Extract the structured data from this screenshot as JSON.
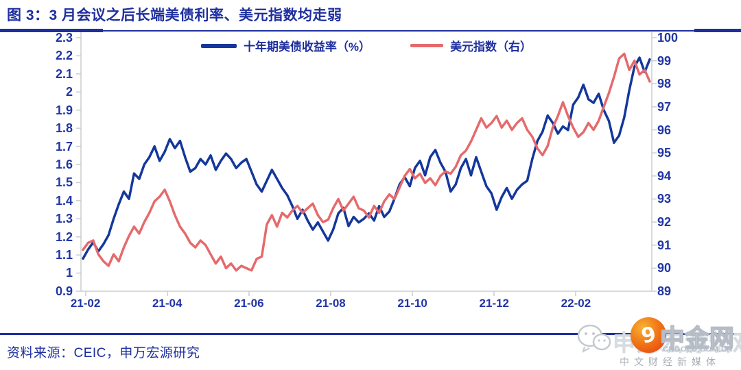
{
  "header": {
    "title": "图 3：3 月会议之后长端美债利率、美元指数均走弱"
  },
  "footer": {
    "source": "资料来源：CEIC，申万宏源研究"
  },
  "watermark": {
    "wechat_icon": "wechat-icon",
    "account_name": "申万宏源宏观",
    "site_name": "中金网",
    "site_url": "CNGOLD.COM.CN",
    "tagline": "中文财经新媒体"
  },
  "colors": {
    "accent_blue": "#1E2F9F",
    "treasury_line": "#14379B",
    "dxy_line": "#E56A6C",
    "axis_gray": "#C9CDD1",
    "watermark_orange": "#E8380D"
  },
  "chart_data": {
    "type": "line",
    "legend_position": "top-center",
    "grid": false,
    "axis_color": "#C9CDD1",
    "x_tick_labels": [
      "21-02",
      "21-04",
      "21-06",
      "21-08",
      "21-10",
      "21-12",
      "22-02"
    ],
    "x_range_note": "2021-02 through late 2022-03, semi-weekly points",
    "left_axis": {
      "min": 0.9,
      "max": 2.3,
      "step": 0.1,
      "tick_labels": [
        "2.3",
        "2.2",
        "2.1",
        "2",
        "1.9",
        "1.8",
        "1.7",
        "1.6",
        "1.5",
        "1.4",
        "1.3",
        "1.2",
        "1.1",
        "1",
        "0.9"
      ]
    },
    "right_axis": {
      "min": 89,
      "max": 100,
      "step": 1,
      "tick_labels": [
        "100",
        "99",
        "98",
        "97",
        "96",
        "95",
        "94",
        "93",
        "92",
        "91",
        "90",
        "89"
      ]
    },
    "series": [
      {
        "name": "十年期美债收益率（%）",
        "axis": "left",
        "color": "#14379B",
        "values": [
          1.08,
          1.13,
          1.17,
          1.12,
          1.16,
          1.21,
          1.3,
          1.38,
          1.45,
          1.41,
          1.55,
          1.52,
          1.6,
          1.64,
          1.7,
          1.62,
          1.67,
          1.74,
          1.69,
          1.73,
          1.64,
          1.56,
          1.58,
          1.63,
          1.6,
          1.65,
          1.57,
          1.62,
          1.66,
          1.63,
          1.58,
          1.61,
          1.63,
          1.56,
          1.49,
          1.45,
          1.51,
          1.57,
          1.52,
          1.47,
          1.43,
          1.37,
          1.3,
          1.35,
          1.29,
          1.24,
          1.28,
          1.23,
          1.18,
          1.24,
          1.33,
          1.36,
          1.26,
          1.31,
          1.28,
          1.3,
          1.33,
          1.29,
          1.37,
          1.31,
          1.34,
          1.41,
          1.49,
          1.53,
          1.48,
          1.58,
          1.62,
          1.54,
          1.64,
          1.68,
          1.61,
          1.56,
          1.45,
          1.49,
          1.58,
          1.63,
          1.54,
          1.64,
          1.56,
          1.48,
          1.44,
          1.35,
          1.42,
          1.47,
          1.41,
          1.46,
          1.49,
          1.51,
          1.63,
          1.73,
          1.78,
          1.87,
          1.83,
          1.77,
          1.81,
          1.79,
          1.93,
          1.97,
          2.04,
          1.96,
          1.94,
          1.99,
          1.9,
          1.84,
          1.72,
          1.76,
          1.86,
          2.01,
          2.14,
          2.19,
          2.11,
          2.18
        ]
      },
      {
        "name": "美元指数（右）",
        "axis": "right",
        "color": "#E56A6C",
        "values": [
          90.8,
          91.1,
          91.2,
          90.6,
          90.3,
          90.1,
          90.6,
          90.3,
          90.9,
          91.4,
          91.8,
          91.5,
          92.0,
          92.4,
          92.9,
          93.1,
          93.4,
          92.9,
          92.3,
          91.8,
          91.5,
          91.1,
          90.9,
          91.2,
          91.0,
          90.6,
          90.2,
          90.5,
          90.0,
          90.2,
          89.9,
          90.1,
          90.0,
          89.9,
          90.4,
          90.5,
          91.9,
          92.3,
          91.8,
          92.4,
          92.2,
          92.5,
          92.7,
          92.4,
          92.6,
          92.8,
          92.3,
          92.0,
          92.1,
          92.6,
          93.0,
          92.5,
          92.8,
          93.1,
          92.6,
          92.5,
          92.2,
          92.7,
          92.4,
          92.9,
          93.2,
          93.0,
          93.5,
          94.0,
          94.3,
          93.9,
          94.1,
          93.7,
          93.9,
          93.6,
          94.0,
          94.2,
          94.1,
          94.4,
          94.9,
          95.1,
          95.5,
          96.0,
          96.5,
          96.1,
          96.3,
          96.6,
          96.1,
          96.4,
          96.0,
          96.3,
          96.5,
          96.0,
          95.7,
          95.2,
          94.9,
          95.3,
          96.1,
          96.6,
          97.2,
          96.6,
          96.1,
          95.7,
          95.9,
          96.3,
          96.0,
          96.4,
          97.0,
          97.6,
          98.3,
          99.1,
          99.3,
          98.6,
          99.0,
          98.4,
          98.6,
          98.1
        ]
      }
    ]
  }
}
